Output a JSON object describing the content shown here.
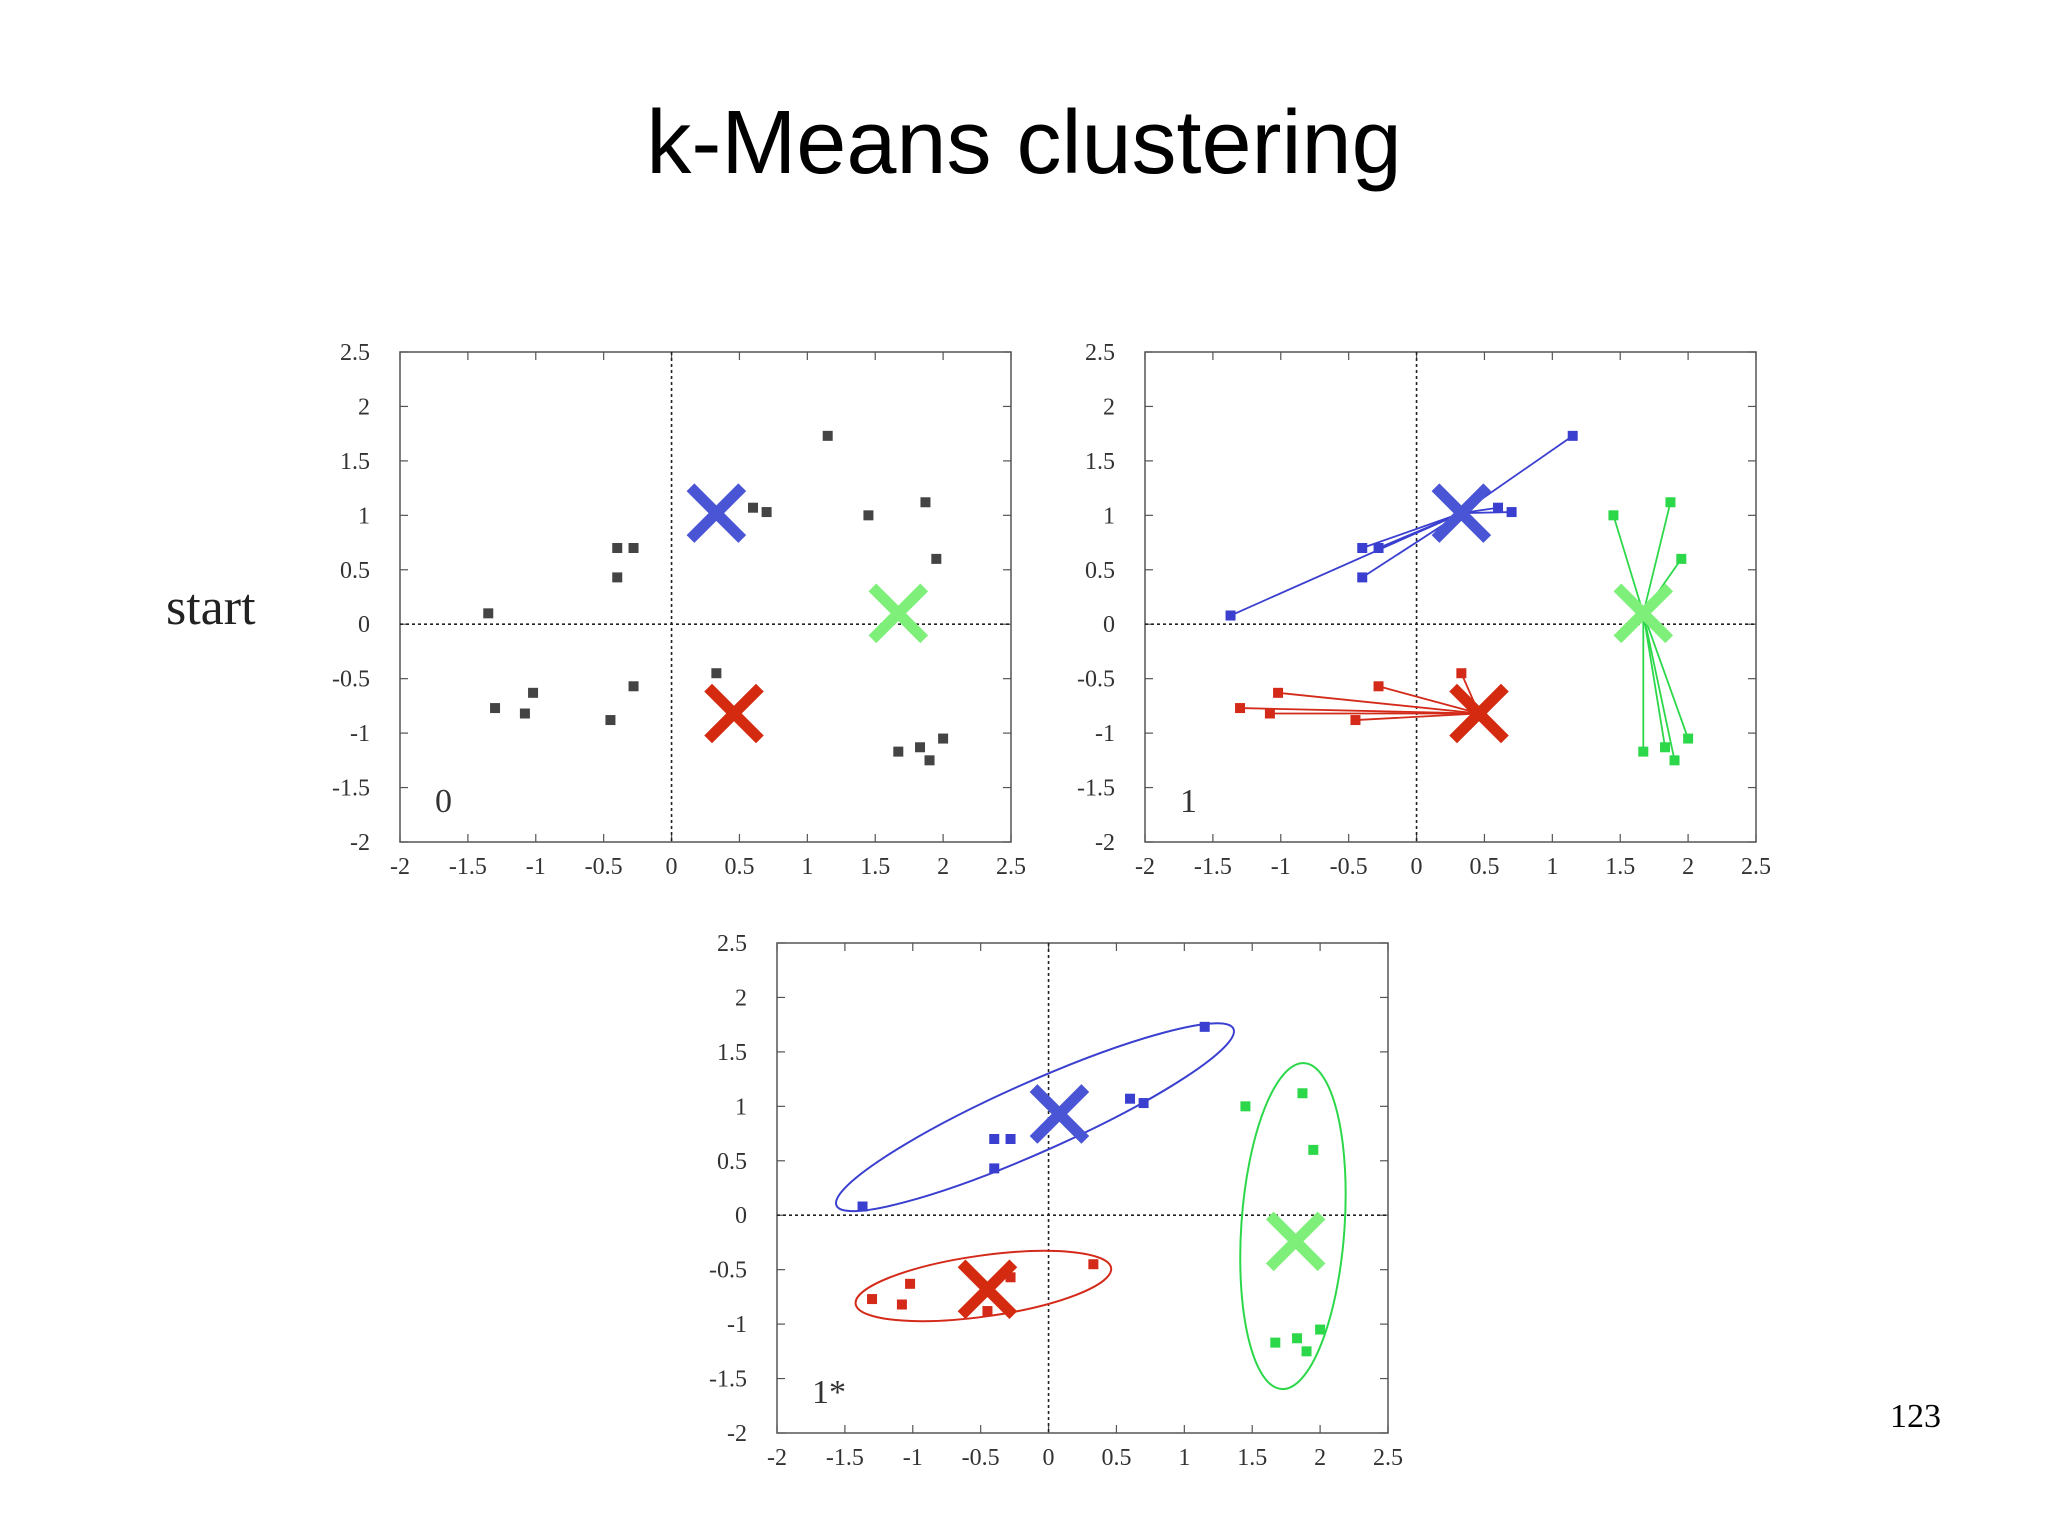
{
  "slide": {
    "title": "k-Means clustering",
    "side_label": "start",
    "page_number": "123"
  },
  "colors": {
    "blue": "#3a3fcf",
    "red": "#d42a1a",
    "green": "#2cd84a",
    "blue_marker": "#4a55d6",
    "red_marker": "#d42a10",
    "green_marker": "#7ef07a",
    "gray": "#444444"
  },
  "chart_data": [
    {
      "type": "scatter",
      "panel_label": "0",
      "xlim": [
        -2,
        2.5
      ],
      "ylim": [
        -2,
        2.5
      ],
      "x_ticks": [
        "-2",
        "-1.5",
        "-1",
        "-0.5",
        "0",
        "0.5",
        "1",
        "1.5",
        "2",
        "2.5"
      ],
      "y_ticks": [
        "2.5",
        "2",
        "1.5",
        "1",
        "0.5",
        "0",
        "-0.5",
        "-1",
        "-1.5",
        "-2"
      ],
      "series": [
        {
          "color": "gray",
          "points": [
            [
              -1.35,
              0.1
            ],
            [
              -1.3,
              -0.77
            ],
            [
              -1.08,
              -0.82
            ],
            [
              -1.02,
              -0.63
            ],
            [
              -0.4,
              0.7
            ],
            [
              -0.28,
              0.7
            ],
            [
              -0.4,
              0.43
            ],
            [
              -0.45,
              -0.88
            ],
            [
              -0.28,
              -0.57
            ],
            [
              0.33,
              -0.45
            ],
            [
              0.6,
              1.07
            ],
            [
              0.7,
              1.03
            ],
            [
              1.15,
              1.73
            ],
            [
              1.45,
              1.0
            ],
            [
              1.87,
              1.12
            ],
            [
              1.95,
              0.6
            ],
            [
              1.67,
              -1.17
            ],
            [
              1.83,
              -1.13
            ],
            [
              1.9,
              -1.25
            ],
            [
              2.0,
              -1.05
            ]
          ]
        }
      ],
      "centroids": [
        {
          "color": "blue_marker",
          "x": 0.33,
          "y": 1.02
        },
        {
          "color": "red_marker",
          "x": 0.46,
          "y": -0.82
        },
        {
          "color": "green_marker",
          "x": 1.67,
          "y": 0.1
        }
      ],
      "assignment_lines": false
    },
    {
      "type": "scatter",
      "panel_label": "1",
      "xlim": [
        -2,
        2.5
      ],
      "ylim": [
        -2,
        2.5
      ],
      "x_ticks": [
        "-2",
        "-1.5",
        "-1",
        "-0.5",
        "0",
        "0.5",
        "1",
        "1.5",
        "2",
        "2.5"
      ],
      "y_ticks": [
        "2.5",
        "2",
        "1.5",
        "1",
        "0.5",
        "0",
        "-0.5",
        "-1",
        "-1.5",
        "-2"
      ],
      "series": [
        {
          "color": "blue",
          "points": [
            [
              -1.37,
              0.08
            ],
            [
              -0.4,
              0.7
            ],
            [
              -0.28,
              0.7
            ],
            [
              -0.4,
              0.43
            ],
            [
              0.6,
              1.07
            ],
            [
              0.7,
              1.03
            ],
            [
              1.15,
              1.73
            ]
          ]
        },
        {
          "color": "red",
          "points": [
            [
              -1.3,
              -0.77
            ],
            [
              -1.08,
              -0.82
            ],
            [
              -1.02,
              -0.63
            ],
            [
              -0.45,
              -0.88
            ],
            [
              -0.28,
              -0.57
            ],
            [
              0.33,
              -0.45
            ]
          ]
        },
        {
          "color": "green",
          "points": [
            [
              1.45,
              1.0
            ],
            [
              1.87,
              1.12
            ],
            [
              1.95,
              0.6
            ],
            [
              1.67,
              -1.17
            ],
            [
              1.83,
              -1.13
            ],
            [
              1.9,
              -1.25
            ],
            [
              2.0,
              -1.05
            ]
          ]
        }
      ],
      "centroids": [
        {
          "color": "blue_marker",
          "x": 0.33,
          "y": 1.02
        },
        {
          "color": "red_marker",
          "x": 0.46,
          "y": -0.82
        },
        {
          "color": "green_marker",
          "x": 1.67,
          "y": 0.1
        }
      ],
      "assignment_lines": true
    },
    {
      "type": "scatter",
      "panel_label": "1*",
      "xlim": [
        -2,
        2.5
      ],
      "ylim": [
        -2,
        2.5
      ],
      "x_ticks": [
        "-2",
        "-1.5",
        "-1",
        "-0.5",
        "0",
        "0.5",
        "1",
        "1.5",
        "2",
        "2.5"
      ],
      "y_ticks": [
        "2.5",
        "2",
        "1.5",
        "1",
        "0.5",
        "0",
        "-0.5",
        "-1",
        "-1.5",
        "-2"
      ],
      "series": [
        {
          "color": "blue",
          "points": [
            [
              -1.37,
              0.08
            ],
            [
              -0.4,
              0.7
            ],
            [
              -0.28,
              0.7
            ],
            [
              -0.4,
              0.43
            ],
            [
              0.6,
              1.07
            ],
            [
              0.7,
              1.03
            ],
            [
              1.15,
              1.73
            ]
          ]
        },
        {
          "color": "red",
          "points": [
            [
              -1.3,
              -0.77
            ],
            [
              -1.08,
              -0.82
            ],
            [
              -1.02,
              -0.63
            ],
            [
              -0.45,
              -0.88
            ],
            [
              -0.28,
              -0.57
            ],
            [
              0.33,
              -0.45
            ]
          ]
        },
        {
          "color": "green",
          "points": [
            [
              1.45,
              1.0
            ],
            [
              1.87,
              1.12
            ],
            [
              1.95,
              0.6
            ],
            [
              1.67,
              -1.17
            ],
            [
              1.83,
              -1.13
            ],
            [
              1.9,
              -1.25
            ],
            [
              2.0,
              -1.05
            ]
          ]
        }
      ],
      "centroids": [
        {
          "color": "blue_marker",
          "x": 0.08,
          "y": 0.93
        },
        {
          "color": "red_marker",
          "x": -0.45,
          "y": -0.68
        },
        {
          "color": "green_marker",
          "x": 1.82,
          "y": -0.24
        }
      ],
      "assignment_lines": false,
      "cluster_outlines": true
    }
  ]
}
